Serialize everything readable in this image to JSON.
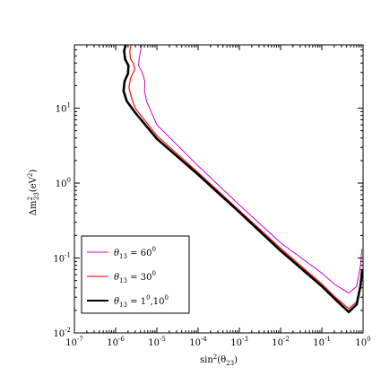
{
  "chart_data": {
    "type": "line",
    "title": "",
    "xlabel": {
      "prefix": "sin",
      "sup": "2",
      "paren": "(θ",
      "sub": "23",
      "suffix": ")"
    },
    "ylabel": {
      "prefix": "Δm",
      "sup": "2",
      "sub": "23",
      "unit": "(eV",
      "unit_sup": "2",
      "unit_suffix": ")"
    },
    "x_scale": "log",
    "y_scale": "log",
    "xlim": [
      1e-07,
      1
    ],
    "ylim": [
      0.01,
      70
    ],
    "grid": false,
    "legend_position": "bottom-left",
    "x_ticks": [
      {
        "value": 1e-07,
        "base": "10",
        "exp": "-7"
      },
      {
        "value": 1e-06,
        "base": "10",
        "exp": "-6"
      },
      {
        "value": 1e-05,
        "base": "10",
        "exp": "-5"
      },
      {
        "value": 0.0001,
        "base": "10",
        "exp": "-4"
      },
      {
        "value": 0.001,
        "base": "10",
        "exp": "-3"
      },
      {
        "value": 0.01,
        "base": "10",
        "exp": "-2"
      },
      {
        "value": 0.1,
        "base": "10",
        "exp": "-1"
      },
      {
        "value": 1,
        "base": "10",
        "exp": "0"
      }
    ],
    "y_ticks": [
      {
        "value": 0.01,
        "base": "10",
        "exp": "-2"
      },
      {
        "value": 0.1,
        "base": "10",
        "exp": "-1"
      },
      {
        "value": 1,
        "base": "10",
        "exp": "0"
      },
      {
        "value": 10,
        "base": "10",
        "exp": "1"
      }
    ],
    "series": [
      {
        "label_main": "θ",
        "label_sub": "13",
        "label_eq": " = ",
        "label_val": "60",
        "label_sup": "0",
        "color": "#d000d0",
        "width": 1,
        "points": [
          [
            4.3e-06,
            70
          ],
          [
            3.7e-06,
            45
          ],
          [
            3.6e-06,
            37
          ],
          [
            4.4e-06,
            30
          ],
          [
            5.1e-06,
            23
          ],
          [
            5e-06,
            17
          ],
          [
            5.6e-06,
            12.5
          ],
          [
            1e-05,
            6
          ],
          [
            0.0001,
            1.7
          ],
          [
            0.001,
            0.51
          ],
          [
            0.01,
            0.16
          ],
          [
            0.1,
            0.063
          ],
          [
            0.2,
            0.045
          ],
          [
            0.45,
            0.034
          ],
          [
            0.7,
            0.042
          ],
          [
            0.87,
            0.08
          ],
          [
            0.93,
            0.13
          ]
        ]
      },
      {
        "label_main": "θ",
        "label_sub": "13",
        "label_eq": " = ",
        "label_val": "30",
        "label_sup": "0",
        "color": "#ff2020",
        "width": 1.3,
        "points": [
          [
            2.35e-06,
            70
          ],
          [
            2.2e-06,
            58
          ],
          [
            2.3e-06,
            45
          ],
          [
            2.7e-06,
            40
          ],
          [
            2.9e-06,
            33
          ],
          [
            2.3e-06,
            25
          ],
          [
            2.1e-06,
            19
          ],
          [
            2.4e-06,
            14
          ],
          [
            3e-06,
            10
          ],
          [
            1e-05,
            4.3
          ],
          [
            0.0001,
            1.38
          ],
          [
            0.001,
            0.43
          ],
          [
            0.01,
            0.135
          ],
          [
            0.1,
            0.045
          ],
          [
            0.2,
            0.031
          ],
          [
            0.45,
            0.021
          ],
          [
            0.7,
            0.026
          ],
          [
            0.87,
            0.045
          ],
          [
            0.95,
            0.07
          ]
        ]
      },
      {
        "label_main": "θ",
        "label_sub": "13",
        "label_eq": " = ",
        "label_val": "1",
        "label_sup": "0",
        "label_val2": "10",
        "label_sup2": "0",
        "color": "#000000",
        "width": 2.6,
        "points": [
          [
            1.75e-06,
            70
          ],
          [
            1.6e-06,
            58
          ],
          [
            1.7e-06,
            45
          ],
          [
            2.05e-06,
            37
          ],
          [
            2e-06,
            29
          ],
          [
            1.65e-06,
            23
          ],
          [
            1.55e-06,
            17
          ],
          [
            1.85e-06,
            12.5
          ],
          [
            3e-06,
            8.7
          ],
          [
            1e-05,
            3.9
          ],
          [
            0.0001,
            1.3
          ],
          [
            0.001,
            0.41
          ],
          [
            0.01,
            0.125
          ],
          [
            0.1,
            0.042
          ],
          [
            0.2,
            0.029
          ],
          [
            0.45,
            0.019
          ],
          [
            0.7,
            0.024
          ],
          [
            0.87,
            0.043
          ],
          [
            0.95,
            0.068
          ]
        ]
      }
    ]
  }
}
